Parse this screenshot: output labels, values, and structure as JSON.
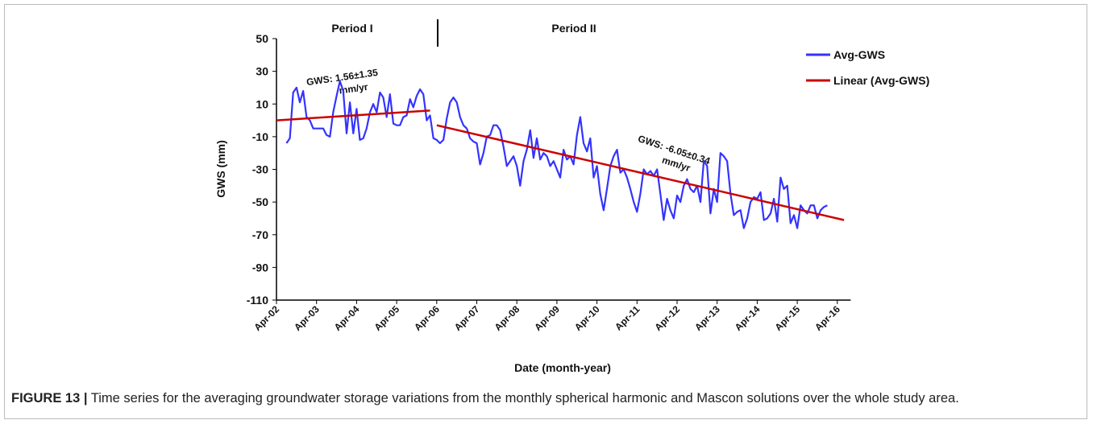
{
  "chart_data": {
    "type": "line",
    "title_annotations": [
      "Period I",
      "Period II"
    ],
    "annotations": [
      {
        "text": "GWS: 1.56±1.35",
        "text2": "mm/yr"
      },
      {
        "text": "GWS: -6.05±0.34",
        "text2": "mm/yr"
      }
    ],
    "ylabel": "GWS (mm)",
    "xlabel": "Date (month-year)",
    "ylim": [
      -110,
      50
    ],
    "yticks": [
      -110,
      -90,
      -70,
      -50,
      -30,
      -10,
      10,
      30,
      50
    ],
    "xlim": [
      "Apr-02",
      "Aug-16"
    ],
    "xticks": [
      "Apr-02",
      "Apr-03",
      "Apr-04",
      "Apr-05",
      "Apr-06",
      "Apr-07",
      "Apr-08",
      "Apr-09",
      "Apr-10",
      "Apr-11",
      "Apr-12",
      "Apr-13",
      "Apr-14",
      "Apr-15",
      "Apr-16"
    ],
    "legend": "upper right",
    "series": [
      {
        "name": "Avg-GWS",
        "color": "#3333ff",
        "x": [
          "Jul-02",
          "Aug-02",
          "Sep-02",
          "Oct-02",
          "Nov-02",
          "Dec-02",
          "Jan-03",
          "Feb-03",
          "Mar-03",
          "Apr-03",
          "May-03",
          "Jun-03",
          "Jul-03",
          "Aug-03",
          "Sep-03",
          "Oct-03",
          "Nov-03",
          "Dec-03",
          "Jan-04",
          "Feb-04",
          "Mar-04",
          "Apr-04",
          "May-04",
          "Jun-04",
          "Jul-04",
          "Aug-04",
          "Sep-04",
          "Oct-04",
          "Nov-04",
          "Dec-04",
          "Jan-05",
          "Feb-05",
          "Mar-05",
          "Apr-05",
          "May-05",
          "Jun-05",
          "Jul-05",
          "Aug-05",
          "Sep-05",
          "Oct-05",
          "Nov-05",
          "Dec-05",
          "Jan-06",
          "Feb-06",
          "Mar-06",
          "Apr-06",
          "May-06",
          "Jun-06",
          "Jul-06",
          "Aug-06",
          "Sep-06",
          "Oct-06",
          "Nov-06",
          "Dec-06",
          "Jan-07",
          "Feb-07",
          "Mar-07",
          "Apr-07",
          "May-07",
          "Jun-07",
          "Jul-07",
          "Aug-07",
          "Sep-07",
          "Oct-07",
          "Nov-07",
          "Dec-07",
          "Jan-08",
          "Feb-08",
          "Mar-08",
          "Apr-08",
          "May-08",
          "Jun-08",
          "Jul-08",
          "Aug-08",
          "Sep-08",
          "Oct-08",
          "Nov-08",
          "Dec-08",
          "Jan-09",
          "Feb-09",
          "Mar-09",
          "Apr-09",
          "May-09",
          "Jun-09",
          "Jul-09",
          "Aug-09",
          "Sep-09",
          "Oct-09",
          "Nov-09",
          "Dec-09",
          "Jan-10",
          "Feb-10",
          "Mar-10",
          "Apr-10",
          "May-10",
          "Jun-10",
          "Jul-10",
          "Aug-10",
          "Sep-10",
          "Oct-10",
          "Nov-10",
          "Dec-10",
          "Jan-11",
          "Feb-11",
          "Mar-11",
          "Apr-11",
          "May-11",
          "Jun-11",
          "Jul-11",
          "Aug-11",
          "Sep-11",
          "Oct-11",
          "Nov-11",
          "Dec-11",
          "Jan-12",
          "Feb-12",
          "Mar-12",
          "Apr-12",
          "May-12",
          "Jun-12",
          "Jul-12",
          "Aug-12",
          "Sep-12",
          "Oct-12",
          "Nov-12",
          "Dec-12",
          "Jan-13",
          "Feb-13",
          "Mar-13",
          "Apr-13",
          "May-13",
          "Jun-13",
          "Jul-13",
          "Aug-13",
          "Sep-13",
          "Oct-13",
          "Nov-13",
          "Dec-13",
          "Jan-14",
          "Feb-14",
          "Mar-14",
          "Apr-14",
          "May-14",
          "Jun-14",
          "Jul-14",
          "Aug-14",
          "Sep-14",
          "Oct-14",
          "Nov-14",
          "Dec-14",
          "Jan-15",
          "Feb-15",
          "Mar-15",
          "Apr-15",
          "May-15",
          "Jun-15",
          "Jul-15",
          "Aug-15",
          "Sep-15",
          "Oct-15",
          "Nov-15",
          "Dec-15",
          "Jan-16"
        ],
        "values": [
          -14,
          -11,
          17,
          20,
          11,
          18,
          2,
          0,
          -5,
          -5,
          -5,
          -5,
          -9,
          -10,
          5,
          15,
          24,
          18,
          -8,
          11,
          -8,
          7,
          -12,
          -11,
          -5,
          5,
          10,
          5,
          17,
          14,
          2,
          16,
          -2,
          -3,
          -3,
          2,
          3,
          13,
          8,
          15,
          19,
          16,
          0,
          3,
          -11,
          -12,
          -14,
          -12,
          1,
          11,
          14,
          11,
          2,
          -3,
          -5,
          -11,
          -13,
          -14,
          -27,
          -20,
          -10,
          -9,
          -3,
          -3,
          -6,
          -16,
          -28,
          -25,
          -22,
          -28,
          -40,
          -25,
          -18,
          -6,
          -23,
          -11,
          -24,
          -20,
          -22,
          -28,
          -25,
          -30,
          -35,
          -18,
          -24,
          -22,
          -27,
          -9,
          2,
          -14,
          -19,
          -11,
          -35,
          -28,
          -45,
          -55,
          -42,
          -28,
          -22,
          -18,
          -32,
          -30,
          -35,
          -42,
          -50,
          -56,
          -45,
          -30,
          -33,
          -31,
          -34,
          -30,
          -45,
          -61,
          -48,
          -55,
          -60,
          -46,
          -50,
          -40,
          -36,
          -42,
          -44,
          -40,
          -50,
          -25,
          -28,
          -57,
          -42,
          -50,
          -20,
          -22,
          -25,
          -45,
          -58,
          -56,
          -55,
          -66,
          -60,
          -50,
          -47,
          -48,
          -44,
          -61,
          -60,
          -57,
          -48,
          -62,
          -35,
          -42,
          -40,
          -63,
          -58,
          -66,
          -52,
          -55,
          -57,
          -52,
          -52,
          -60,
          -55,
          -53,
          -52
        ]
      },
      {
        "name": "Linear (Avg-GWS)",
        "color": "#cc0000",
        "x": [
          "Apr-02",
          "Feb-06",
          "Mar-06",
          "Apr-06",
          "Jun-16"
        ],
        "values": [
          0,
          6,
          null,
          -3,
          -61
        ]
      }
    ],
    "caption": {
      "label": "FIGURE 13 |",
      "text": "Time series for the averaging groundwater storage variations from the monthly spherical harmonic and Mascon solutions over the whole study area."
    }
  }
}
